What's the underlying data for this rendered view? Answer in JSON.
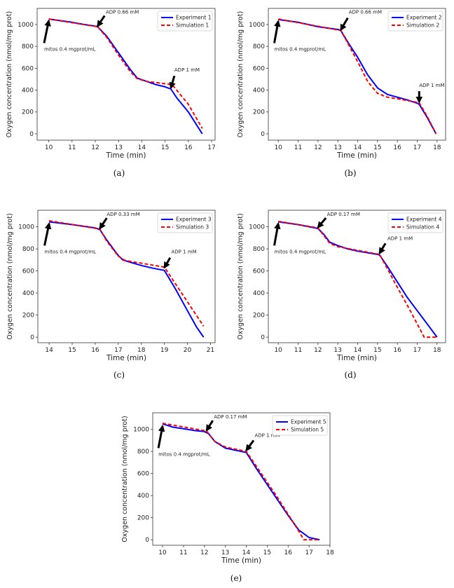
{
  "colors": {
    "experiment": "#0000ff",
    "simulation": "#ff0000",
    "arrow": "#000000"
  },
  "chart_data": [
    {
      "type": "line",
      "caption": "(a)",
      "xlabel": "Time (min)",
      "ylabel": "Oxygen concentration (nmol/mg prot)",
      "xlim": [
        9.5,
        17.15
      ],
      "ylim": [
        -58,
        1147
      ],
      "xticks": [
        10,
        11,
        12,
        13,
        14,
        15,
        16,
        17
      ],
      "yticks": [
        0,
        200,
        400,
        600,
        800,
        1000
      ],
      "legend_position": "top-right",
      "grid": false,
      "series": [
        {
          "name": "Experiment 1",
          "style": "solid",
          "points": [
            [
              10,
              1050
            ],
            [
              10.5,
              1035
            ],
            [
              11,
              1020
            ],
            [
              11.5,
              1000
            ],
            [
              12,
              985
            ],
            [
              12.1,
              980
            ],
            [
              12.5,
              890
            ],
            [
              13,
              740
            ],
            [
              13.5,
              590
            ],
            [
              13.8,
              510
            ],
            [
              14.2,
              480
            ],
            [
              14.6,
              450
            ],
            [
              15,
              430
            ],
            [
              15.25,
              410
            ],
            [
              15.5,
              330
            ],
            [
              16,
              200
            ],
            [
              16.6,
              0
            ]
          ]
        },
        {
          "name": "Simulation 1",
          "style": "dashed",
          "points": [
            [
              10,
              1050
            ],
            [
              12.1,
              980
            ],
            [
              12.5,
              880
            ],
            [
              13,
              720
            ],
            [
              13.5,
              570
            ],
            [
              13.8,
              505
            ],
            [
              14.2,
              480
            ],
            [
              15.3,
              450
            ],
            [
              16,
              270
            ],
            [
              16.6,
              50
            ]
          ]
        }
      ],
      "annotations": [
        {
          "text": "mitos 0.4 mgprot/mL",
          "tip": [
            10,
            1035
          ],
          "tail": [
            9.8,
            830
          ],
          "text_at": [
            9.8,
            760
          ]
        },
        {
          "text": "ADP 0.66 mM",
          "tip": [
            12.1,
            985
          ],
          "tail": [
            12.4,
            1080
          ],
          "text_at": [
            12.45,
            1100
          ]
        },
        {
          "text": "ADP 1 mM",
          "tip": [
            15.25,
            420
          ],
          "tail": [
            15.4,
            530
          ],
          "text_at": [
            15.4,
            570
          ]
        }
      ]
    },
    {
      "type": "line",
      "caption": "(b)",
      "xlabel": "Time (min)",
      "ylabel": "Oxygen concentration (nmol/mg prot)",
      "xlim": [
        9.5,
        18.43
      ],
      "ylim": [
        -58,
        1147
      ],
      "xticks": [
        10,
        11,
        12,
        13,
        14,
        15,
        16,
        17,
        18
      ],
      "yticks": [
        0,
        200,
        400,
        600,
        800,
        1000
      ],
      "legend_position": "top-right",
      "grid": false,
      "series": [
        {
          "name": "Experiment 2",
          "style": "solid",
          "points": [
            [
              10,
              1045
            ],
            [
              11,
              1020
            ],
            [
              12,
              980
            ],
            [
              13,
              955
            ],
            [
              13.15,
              945
            ],
            [
              13.5,
              840
            ],
            [
              14,
              700
            ],
            [
              14.5,
              540
            ],
            [
              15,
              420
            ],
            [
              15.5,
              360
            ],
            [
              16,
              335
            ],
            [
              16.5,
              310
            ],
            [
              17,
              280
            ],
            [
              17.1,
              270
            ],
            [
              17.5,
              150
            ],
            [
              17.95,
              0
            ]
          ]
        },
        {
          "name": "Simulation 2",
          "style": "dashed",
          "points": [
            [
              10,
              1050
            ],
            [
              13.15,
              945
            ],
            [
              13.5,
              830
            ],
            [
              14,
              660
            ],
            [
              14.5,
              480
            ],
            [
              15,
              370
            ],
            [
              15.5,
              335
            ],
            [
              16,
              320
            ],
            [
              17.1,
              285
            ],
            [
              17.5,
              160
            ],
            [
              17.95,
              0
            ]
          ]
        }
      ],
      "annotations": [
        {
          "text": "mitos 0.4 mgprot/mL",
          "tip": [
            10,
            1030
          ],
          "tail": [
            9.8,
            830
          ],
          "text_at": [
            9.8,
            760
          ]
        },
        {
          "text": "ADP 0.66 mM",
          "tip": [
            13.15,
            950
          ],
          "tail": [
            13.5,
            1060
          ],
          "text_at": [
            13.55,
            1100
          ]
        },
        {
          "text": "ADP 1 mM",
          "tip": [
            17.1,
            290
          ],
          "tail": [
            17.1,
            390
          ],
          "text_at": [
            17.1,
            430
          ]
        }
      ]
    },
    {
      "type": "line",
      "caption": "(c)",
      "xlabel": "Time (min)",
      "ylabel": "Oxygen concentration (nmol/mg prot)",
      "xlim": [
        13.51,
        21.2
      ],
      "ylim": [
        -50,
        1150
      ],
      "xticks": [
        14,
        15,
        16,
        17,
        18,
        19,
        20,
        21
      ],
      "yticks": [
        0,
        200,
        400,
        600,
        800,
        1000
      ],
      "legend_position": "top-right",
      "grid": false,
      "series": [
        {
          "name": "Experiment 3",
          "style": "solid",
          "points": [
            [
              14,
              1045
            ],
            [
              15,
              1020
            ],
            [
              16,
              990
            ],
            [
              16.2,
              975
            ],
            [
              16.5,
              880
            ],
            [
              17,
              740
            ],
            [
              17.2,
              700
            ],
            [
              17.5,
              680
            ],
            [
              18,
              650
            ],
            [
              18.5,
              625
            ],
            [
              19,
              605
            ],
            [
              19.5,
              430
            ],
            [
              20,
              240
            ],
            [
              20.4,
              90
            ],
            [
              20.7,
              0
            ]
          ]
        },
        {
          "name": "Simulation 3",
          "style": "dashed",
          "points": [
            [
              14,
              1055
            ],
            [
              16.2,
              980
            ],
            [
              16.5,
              870
            ],
            [
              17,
              735
            ],
            [
              17.3,
              695
            ],
            [
              19,
              635
            ],
            [
              20.7,
              100
            ]
          ]
        }
      ],
      "annotations": [
        {
          "text": "mitos 0.4 mgprot/mL",
          "tip": [
            14,
            1030
          ],
          "tail": [
            13.8,
            830
          ],
          "text_at": [
            13.8,
            760
          ]
        },
        {
          "text": "ADP 0.33 mM",
          "tip": [
            16.2,
            985
          ],
          "tail": [
            16.5,
            1080
          ],
          "text_at": [
            16.5,
            1100
          ]
        },
        {
          "text": "ADP 1 mM",
          "tip": [
            19,
            630
          ],
          "tail": [
            19.25,
            720
          ],
          "text_at": [
            19.3,
            760
          ]
        }
      ]
    },
    {
      "type": "line",
      "caption": "(d)",
      "xlabel": "Time (min)",
      "ylabel": "Oxygen concentration (nmol/mg prot)",
      "xlim": [
        9.5,
        18.43
      ],
      "ylim": [
        -50,
        1150
      ],
      "xticks": [
        10,
        11,
        12,
        13,
        14,
        15,
        16,
        17,
        18
      ],
      "yticks": [
        0,
        200,
        400,
        600,
        800,
        1000
      ],
      "legend_position": "top-right",
      "grid": false,
      "series": [
        {
          "name": "Experiment 4",
          "style": "solid",
          "points": [
            [
              10,
              1045
            ],
            [
              11,
              1020
            ],
            [
              12,
              985
            ],
            [
              12.3,
              930
            ],
            [
              12.6,
              860
            ],
            [
              13,
              830
            ],
            [
              13.5,
              800
            ],
            [
              14,
              780
            ],
            [
              14.5,
              765
            ],
            [
              15,
              750
            ],
            [
              15.1,
              745
            ],
            [
              15.5,
              640
            ],
            [
              16,
              500
            ],
            [
              16.5,
              360
            ],
            [
              17,
              240
            ],
            [
              17.5,
              120
            ],
            [
              18,
              0
            ]
          ]
        },
        {
          "name": "Simulation 4",
          "style": "dashed",
          "points": [
            [
              10,
              1050
            ],
            [
              12,
              990
            ],
            [
              12.3,
              920
            ],
            [
              12.6,
              850
            ],
            [
              13,
              820
            ],
            [
              15.1,
              750
            ],
            [
              15.5,
              620
            ],
            [
              16,
              450
            ],
            [
              16.5,
              290
            ],
            [
              17,
              120
            ],
            [
              17.35,
              0
            ],
            [
              18,
              0
            ]
          ]
        }
      ],
      "annotations": [
        {
          "text": "mitos 0.4 mgprot/mL",
          "tip": [
            10,
            1030
          ],
          "tail": [
            9.8,
            830
          ],
          "text_at": [
            9.8,
            760
          ]
        },
        {
          "text": "ADP 0.17 mM",
          "tip": [
            12,
            995
          ],
          "tail": [
            12.4,
            1080
          ],
          "text_at": [
            12.45,
            1100
          ]
        },
        {
          "text": "ADP 1 mM",
          "tip": [
            15.1,
            760
          ],
          "tail": [
            15.4,
            850
          ],
          "text_at": [
            15.5,
            880
          ]
        }
      ]
    },
    {
      "type": "line",
      "caption": "(e)",
      "xlabel": "Time (min)",
      "ylabel": "Oxygen concentration (nmol/mg prot)",
      "xlim": [
        9.53,
        18.0
      ],
      "ylim": [
        -50,
        1150
      ],
      "xticks": [
        10,
        11,
        12,
        13,
        14,
        15,
        16,
        17,
        18
      ],
      "yticks": [
        0,
        200,
        400,
        600,
        800,
        1000
      ],
      "legend_position": "top-right",
      "grid": false,
      "series": [
        {
          "name": "Experiment 5",
          "style": "solid",
          "points": [
            [
              10,
              1050
            ],
            [
              10.5,
              1020
            ],
            [
              11,
              1005
            ],
            [
              11.5,
              990
            ],
            [
              12,
              980
            ],
            [
              12.2,
              960
            ],
            [
              12.5,
              890
            ],
            [
              13,
              830
            ],
            [
              13.5,
              810
            ],
            [
              14,
              790
            ],
            [
              14.2,
              730
            ],
            [
              14.5,
              640
            ],
            [
              15,
              500
            ],
            [
              15.5,
              360
            ],
            [
              16,
              220
            ],
            [
              16.5,
              90
            ],
            [
              17,
              20
            ],
            [
              17.5,
              0
            ]
          ]
        },
        {
          "name": "Simulation 5",
          "style": "dashed",
          "points": [
            [
              10,
              1055
            ],
            [
              12.1,
              985
            ],
            [
              12.5,
              890
            ],
            [
              13,
              840
            ],
            [
              14,
              800
            ],
            [
              14.5,
              660
            ],
            [
              15,
              520
            ],
            [
              15.5,
              380
            ],
            [
              16,
              230
            ],
            [
              16.5,
              80
            ],
            [
              16.75,
              0
            ],
            [
              17.5,
              0
            ]
          ]
        }
      ],
      "annotations": [
        {
          "text": "mitos 0.4 mgprot/mL",
          "tip": [
            10,
            1030
          ],
          "tail": [
            9.8,
            830
          ],
          "text_at": [
            9.8,
            760
          ]
        },
        {
          "text": "ADP 0.17 mM",
          "tip": [
            12.1,
            990
          ],
          "tail": [
            12.4,
            1080
          ],
          "text_at": [
            12.45,
            1100
          ]
        },
        {
          "text": "ADP 1 mM",
          "tip": [
            14,
            810
          ],
          "tail": [
            14.35,
            900
          ],
          "text_at": [
            14.4,
            930
          ]
        }
      ]
    }
  ]
}
